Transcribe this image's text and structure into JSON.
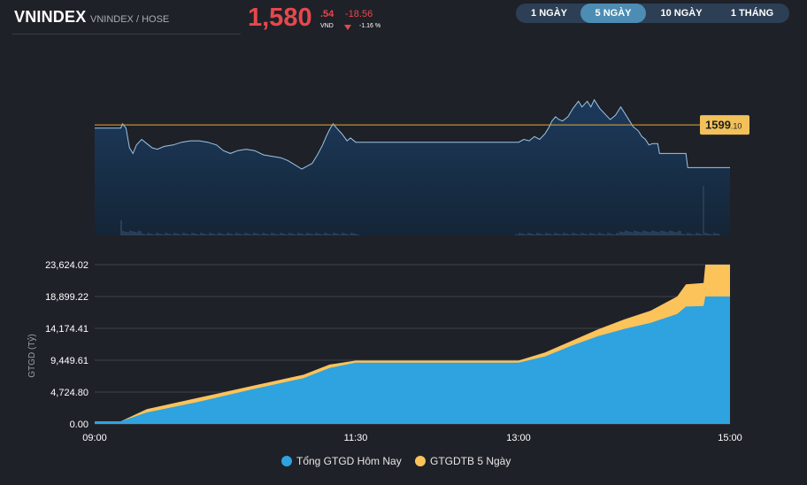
{
  "header": {
    "title": "VNINDEX",
    "subtitle": "VNINDEX / HOSE",
    "price_int": "1,580",
    "price_dec": ".54",
    "price_unit": "VND",
    "change": "-18.56",
    "change_pct": "-1.16 %"
  },
  "tabs": [
    {
      "label": "1 NGÀY",
      "active": false
    },
    {
      "label": "5 NGÀY",
      "active": true
    },
    {
      "label": "10 NGÀY",
      "active": false
    },
    {
      "label": "1 THÁNG",
      "active": false
    }
  ],
  "colors": {
    "price_line": "#9cc6e6",
    "reference_line": "#e6a82f",
    "reference_badge": "#f2c15a",
    "today_value": "#2ea3df",
    "avg5_value": "#fcc35a",
    "down": "#e5484d"
  },
  "chart_data": [
    {
      "type": "line",
      "reference": {
        "value_int": "1599",
        "value_dec": ".10"
      },
      "y_domain": [
        1560,
        1612
      ],
      "x_time_range": [
        "09:00",
        "15:00"
      ],
      "price": [
        [
          "09:00",
          1598.0
        ],
        [
          "09:15",
          1598.0
        ],
        [
          "09:16",
          1599.5
        ],
        [
          "09:18",
          1598.0
        ],
        [
          "09:20",
          1591.0
        ],
        [
          "09:22",
          1589.0
        ],
        [
          "09:24",
          1592.0
        ],
        [
          "09:27",
          1594.0
        ],
        [
          "09:30",
          1592.5
        ],
        [
          "09:33",
          1591.0
        ],
        [
          "09:36",
          1590.5
        ],
        [
          "09:40",
          1591.5
        ],
        [
          "09:45",
          1592.0
        ],
        [
          "09:50",
          1593.0
        ],
        [
          "09:55",
          1593.5
        ],
        [
          "10:00",
          1593.5
        ],
        [
          "10:05",
          1593.0
        ],
        [
          "10:10",
          1592.0
        ],
        [
          "10:14",
          1590.0
        ],
        [
          "10:18",
          1589.0
        ],
        [
          "10:22",
          1590.0
        ],
        [
          "10:27",
          1590.5
        ],
        [
          "10:32",
          1590.0
        ],
        [
          "10:37",
          1588.5
        ],
        [
          "10:42",
          1588.0
        ],
        [
          "10:47",
          1587.5
        ],
        [
          "10:51",
          1586.5
        ],
        [
          "10:55",
          1585.0
        ],
        [
          "10:59",
          1583.5
        ],
        [
          "11:02",
          1584.5
        ],
        [
          "11:05",
          1585.5
        ],
        [
          "11:08",
          1588.5
        ],
        [
          "11:11",
          1592.0
        ],
        [
          "11:13",
          1595.0
        ],
        [
          "11:15",
          1597.5
        ],
        [
          "11:17",
          1599.5
        ],
        [
          "11:19",
          1598.0
        ],
        [
          "11:22",
          1596.0
        ],
        [
          "11:25",
          1593.5
        ],
        [
          "11:27",
          1594.5
        ],
        [
          "11:30",
          1593.0
        ],
        [
          "13:00",
          1593.0
        ],
        [
          "13:03",
          1594.0
        ],
        [
          "13:06",
          1593.5
        ],
        [
          "13:09",
          1595.0
        ],
        [
          "13:12",
          1594.0
        ],
        [
          "13:15",
          1596.0
        ],
        [
          "13:17",
          1598.0
        ],
        [
          "13:19",
          1600.5
        ],
        [
          "13:21",
          1602.0
        ],
        [
          "13:23",
          1601.0
        ],
        [
          "13:25",
          1600.5
        ],
        [
          "13:28",
          1602.0
        ],
        [
          "13:31",
          1605.0
        ],
        [
          "13:34",
          1607.5
        ],
        [
          "13:36",
          1605.5
        ],
        [
          "13:39",
          1607.5
        ],
        [
          "13:41",
          1605.5
        ],
        [
          "13:43",
          1608.0
        ],
        [
          "13:46",
          1605.0
        ],
        [
          "13:49",
          1603.0
        ],
        [
          "13:52",
          1601.0
        ],
        [
          "13:55",
          1602.5
        ],
        [
          "13:58",
          1605.5
        ],
        [
          "14:00",
          1603.5
        ],
        [
          "14:03",
          1600.5
        ],
        [
          "14:05",
          1598.5
        ],
        [
          "14:08",
          1597.0
        ],
        [
          "14:10",
          1595.0
        ],
        [
          "14:12",
          1594.0
        ],
        [
          "14:14",
          1592.0
        ],
        [
          "14:16",
          1592.5
        ],
        [
          "14:19",
          1592.5
        ],
        [
          "14:20",
          1589.0
        ],
        [
          "14:35",
          1589.0
        ],
        [
          "14:36",
          1584.0
        ],
        [
          "14:45",
          1584.0
        ]
      ]
    },
    {
      "type": "area",
      "ylabel": "GTGD (Tỷ)",
      "y_ticks": [
        "0.00",
        "4,724.80",
        "9,449.61",
        "14,174.41",
        "18,899.22",
        "23,624.02"
      ],
      "ylim": [
        0,
        23624.02
      ],
      "x_ticks": [
        "09:00",
        "11:30",
        "13:00",
        "15:00"
      ],
      "legend_position": "bottom",
      "series": [
        {
          "name": "Tổng GTGD Hôm Nay",
          "points": [
            [
              "09:00",
              400
            ],
            [
              "09:15",
              400
            ],
            [
              "09:30",
              1700
            ],
            [
              "10:00",
              3300
            ],
            [
              "10:30",
              5100
            ],
            [
              "11:00",
              6800
            ],
            [
              "11:15",
              8300
            ],
            [
              "11:30",
              9100
            ],
            [
              "13:00",
              9100
            ],
            [
              "13:15",
              10000
            ],
            [
              "13:30",
              11600
            ],
            [
              "13:45",
              13000
            ],
            [
              "14:00",
              14100
            ],
            [
              "14:15",
              15000
            ],
            [
              "14:30",
              16300
            ],
            [
              "14:35",
              17400
            ],
            [
              "14:45",
              17500
            ],
            [
              "14:46",
              18899
            ],
            [
              "15:00",
              18899
            ]
          ]
        },
        {
          "name": "GTGDTB 5 Ngày",
          "points": [
            [
              "09:00",
              400
            ],
            [
              "09:15",
              400
            ],
            [
              "09:30",
              2200
            ],
            [
              "10:00",
              3900
            ],
            [
              "10:30",
              5600
            ],
            [
              "11:00",
              7300
            ],
            [
              "11:15",
              8800
            ],
            [
              "11:30",
              9400
            ],
            [
              "13:00",
              9400
            ],
            [
              "13:15",
              10600
            ],
            [
              "13:30",
              12300
            ],
            [
              "13:45",
              14000
            ],
            [
              "14:00",
              15500
            ],
            [
              "14:15",
              16800
            ],
            [
              "14:30",
              18900
            ],
            [
              "14:35",
              20700
            ],
            [
              "14:45",
              20900
            ],
            [
              "14:46",
              23624
            ],
            [
              "15:00",
              23624
            ]
          ]
        }
      ]
    }
  ],
  "legend": {
    "today": "Tổng GTGD Hôm Nay",
    "avg5": "GTGDTB 5 Ngày"
  }
}
